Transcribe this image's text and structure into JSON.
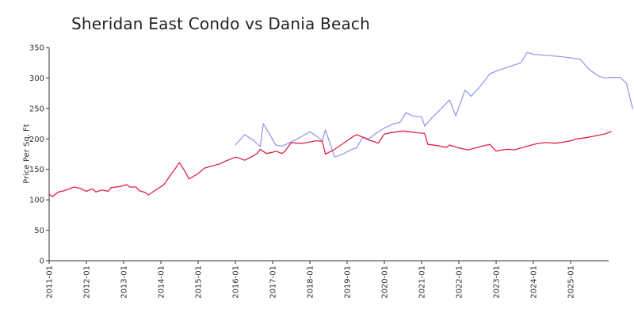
{
  "chart_data": {
    "type": "line",
    "title": "Sheridan East Condo vs Dania Beach",
    "xlabel": "",
    "ylabel": "Price Per Sq. Ft",
    "ylim": [
      0,
      350
    ],
    "yticks": [
      0,
      50,
      100,
      150,
      200,
      250,
      300,
      350
    ],
    "xticks": [
      "2011-01",
      "2012-01",
      "2013-01",
      "2014-01",
      "2015-01",
      "2016-01",
      "2017-01",
      "2018-01",
      "2019-01",
      "2020-01",
      "2021-01",
      "2022-01",
      "2023-01",
      "2024-01",
      "2025-01"
    ],
    "grid": false,
    "legend": "none",
    "series": [
      {
        "color": "#9999ee",
        "points": [
          [
            "2016-01",
            190
          ],
          [
            "2016-04",
            207
          ],
          [
            "2016-07",
            197
          ],
          [
            "2016-09",
            187
          ],
          [
            "2016-10",
            225
          ],
          [
            "2016-12",
            208
          ],
          [
            "2017-02",
            190
          ],
          [
            "2017-04",
            188
          ],
          [
            "2017-07",
            195
          ],
          [
            "2017-10",
            203
          ],
          [
            "2018-01",
            212
          ],
          [
            "2018-03",
            205
          ],
          [
            "2018-05",
            197
          ],
          [
            "2018-06",
            215
          ],
          [
            "2018-09",
            170
          ],
          [
            "2018-12",
            176
          ],
          [
            "2019-02",
            182
          ],
          [
            "2019-04",
            185
          ],
          [
            "2019-06",
            203
          ],
          [
            "2019-08",
            200
          ],
          [
            "2019-10",
            208
          ],
          [
            "2020-01",
            218
          ],
          [
            "2020-04",
            225
          ],
          [
            "2020-06",
            227
          ],
          [
            "2020-08",
            243
          ],
          [
            "2020-10",
            238
          ],
          [
            "2021-01",
            236
          ],
          [
            "2021-02",
            221
          ],
          [
            "2021-04",
            233
          ],
          [
            "2021-07",
            248
          ],
          [
            "2021-10",
            264
          ],
          [
            "2021-12",
            238
          ],
          [
            "2022-03",
            280
          ],
          [
            "2022-05",
            270
          ],
          [
            "2022-08",
            287
          ],
          [
            "2022-11",
            307
          ],
          [
            "2023-02",
            313
          ],
          [
            "2023-06",
            320
          ],
          [
            "2023-09",
            325
          ],
          [
            "2023-11",
            342
          ],
          [
            "2024-01",
            339
          ],
          [
            "2024-06",
            337
          ],
          [
            "2024-10",
            335
          ],
          [
            "2025-01",
            333
          ],
          [
            "2025-04",
            331
          ],
          [
            "2025-07",
            314
          ],
          [
            "2025-10",
            303
          ],
          [
            "2025-12",
            300
          ],
          [
            "2026-02",
            301
          ],
          [
            "2026-05",
            301
          ],
          [
            "2026-07",
            291
          ],
          [
            "2026-09",
            250
          ]
        ]
      },
      {
        "color": "#dd2244",
        "points": [
          [
            "2011-01",
            110
          ],
          [
            "2011-02",
            105
          ],
          [
            "2011-04",
            113
          ],
          [
            "2011-06",
            115
          ],
          [
            "2011-09",
            121
          ],
          [
            "2011-11",
            119
          ],
          [
            "2012-01",
            114
          ],
          [
            "2012-03",
            118
          ],
          [
            "2012-04",
            113
          ],
          [
            "2012-06",
            116
          ],
          [
            "2012-08",
            114
          ],
          [
            "2012-09",
            120
          ],
          [
            "2012-12",
            122
          ],
          [
            "2013-02",
            125
          ],
          [
            "2013-03",
            121
          ],
          [
            "2013-05",
            121
          ],
          [
            "2013-06",
            115
          ],
          [
            "2013-08",
            112
          ],
          [
            "2013-09",
            108
          ],
          [
            "2013-11",
            115
          ],
          [
            "2014-02",
            125
          ],
          [
            "2014-04",
            140
          ],
          [
            "2014-07",
            161
          ],
          [
            "2014-09",
            145
          ],
          [
            "2014-10",
            134
          ],
          [
            "2015-01",
            143
          ],
          [
            "2015-03",
            152
          ],
          [
            "2015-05",
            155
          ],
          [
            "2015-08",
            159
          ],
          [
            "2015-10",
            164
          ],
          [
            "2016-01",
            170
          ],
          [
            "2016-02",
            169
          ],
          [
            "2016-04",
            165
          ],
          [
            "2016-06",
            170
          ],
          [
            "2016-08",
            176
          ],
          [
            "2016-09",
            183
          ],
          [
            "2016-11",
            176
          ],
          [
            "2017-01",
            178
          ],
          [
            "2017-02",
            180
          ],
          [
            "2017-04",
            176
          ],
          [
            "2017-05",
            180
          ],
          [
            "2017-07",
            194
          ],
          [
            "2017-09",
            193
          ],
          [
            "2017-11",
            193
          ],
          [
            "2018-01",
            195
          ],
          [
            "2018-03",
            197
          ],
          [
            "2018-05",
            196
          ],
          [
            "2018-06",
            175
          ],
          [
            "2018-09",
            183
          ],
          [
            "2018-11",
            190
          ],
          [
            "2019-01",
            197
          ],
          [
            "2019-03",
            204
          ],
          [
            "2019-04",
            207
          ],
          [
            "2019-06",
            203
          ],
          [
            "2019-08",
            198
          ],
          [
            "2019-10",
            195
          ],
          [
            "2019-11",
            193
          ],
          [
            "2020-01",
            208
          ],
          [
            "2020-04",
            211
          ],
          [
            "2020-07",
            213
          ],
          [
            "2020-10",
            211
          ],
          [
            "2020-12",
            210
          ],
          [
            "2021-02",
            209
          ],
          [
            "2021-03",
            191
          ],
          [
            "2021-06",
            189
          ],
          [
            "2021-09",
            186
          ],
          [
            "2021-10",
            190
          ],
          [
            "2022-01",
            185
          ],
          [
            "2022-04",
            182
          ],
          [
            "2022-07",
            186
          ],
          [
            "2022-10",
            190
          ],
          [
            "2022-11",
            191
          ],
          [
            "2023-01",
            180
          ],
          [
            "2023-03",
            182
          ],
          [
            "2023-05",
            183
          ],
          [
            "2023-07",
            182
          ],
          [
            "2023-09",
            185
          ],
          [
            "2023-11",
            188
          ],
          [
            "2024-02",
            192
          ],
          [
            "2024-05",
            194
          ],
          [
            "2024-08",
            193
          ],
          [
            "2024-11",
            195
          ],
          [
            "2025-01",
            197
          ],
          [
            "2025-03",
            200
          ],
          [
            "2025-06",
            202
          ],
          [
            "2025-09",
            205
          ],
          [
            "2025-12",
            208
          ],
          [
            "2026-02",
            212
          ]
        ]
      }
    ]
  }
}
